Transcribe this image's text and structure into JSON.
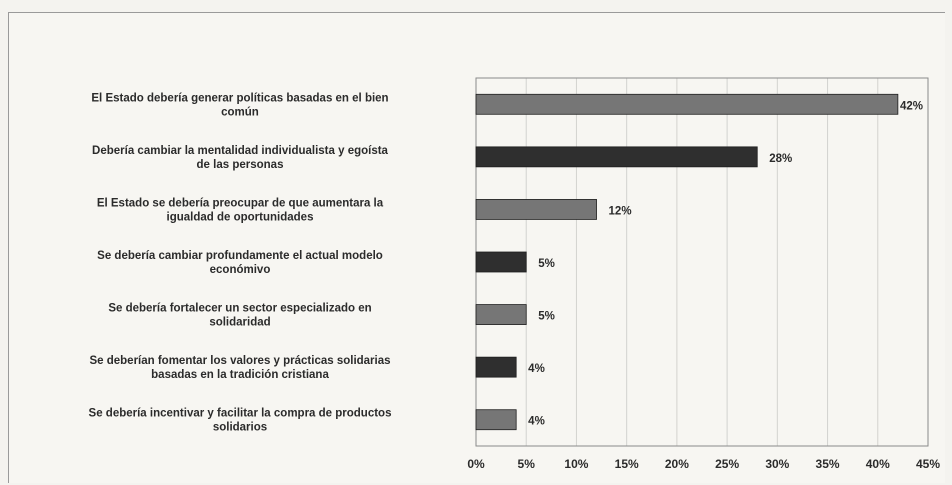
{
  "chart_data": {
    "type": "bar",
    "orientation": "horizontal",
    "categories": [
      [
        "El Estado debería generar políticas basadas en el bien",
        "común"
      ],
      [
        "Debería cambiar la mentalidad individualista y egoísta",
        "de las personas"
      ],
      [
        "El Estado se debería preocupar de que aumentara la",
        "igualdad de oportunidades"
      ],
      [
        "Se debería cambiar profundamente el actual modelo",
        "económivo"
      ],
      [
        "Se debería fortalecer un sector especializado en",
        "solidaridad"
      ],
      [
        "Se deberían fomentar los valores y prácticas solidarias",
        "basadas en la tradición cristiana"
      ],
      [
        "Se debería incentivar y facilitar la compra de productos",
        "solidarios"
      ]
    ],
    "values": [
      42,
      28,
      12,
      5,
      5,
      4,
      4
    ],
    "value_labels": [
      "42%",
      "28%",
      "12%",
      "5%",
      "5%",
      "4%",
      "4%"
    ],
    "bar_colors": [
      "#767676",
      "#2f2f2f",
      "#767676",
      "#2f2f2f",
      "#767676",
      "#2f2f2f",
      "#767676"
    ],
    "xlim": [
      0,
      45
    ],
    "xticks": [
      "0%",
      "5%",
      "10%",
      "15%",
      "20%",
      "25%",
      "30%",
      "35%",
      "40%",
      "45%"
    ],
    "grid": true,
    "title": "",
    "xlabel": "",
    "ylabel": ""
  }
}
